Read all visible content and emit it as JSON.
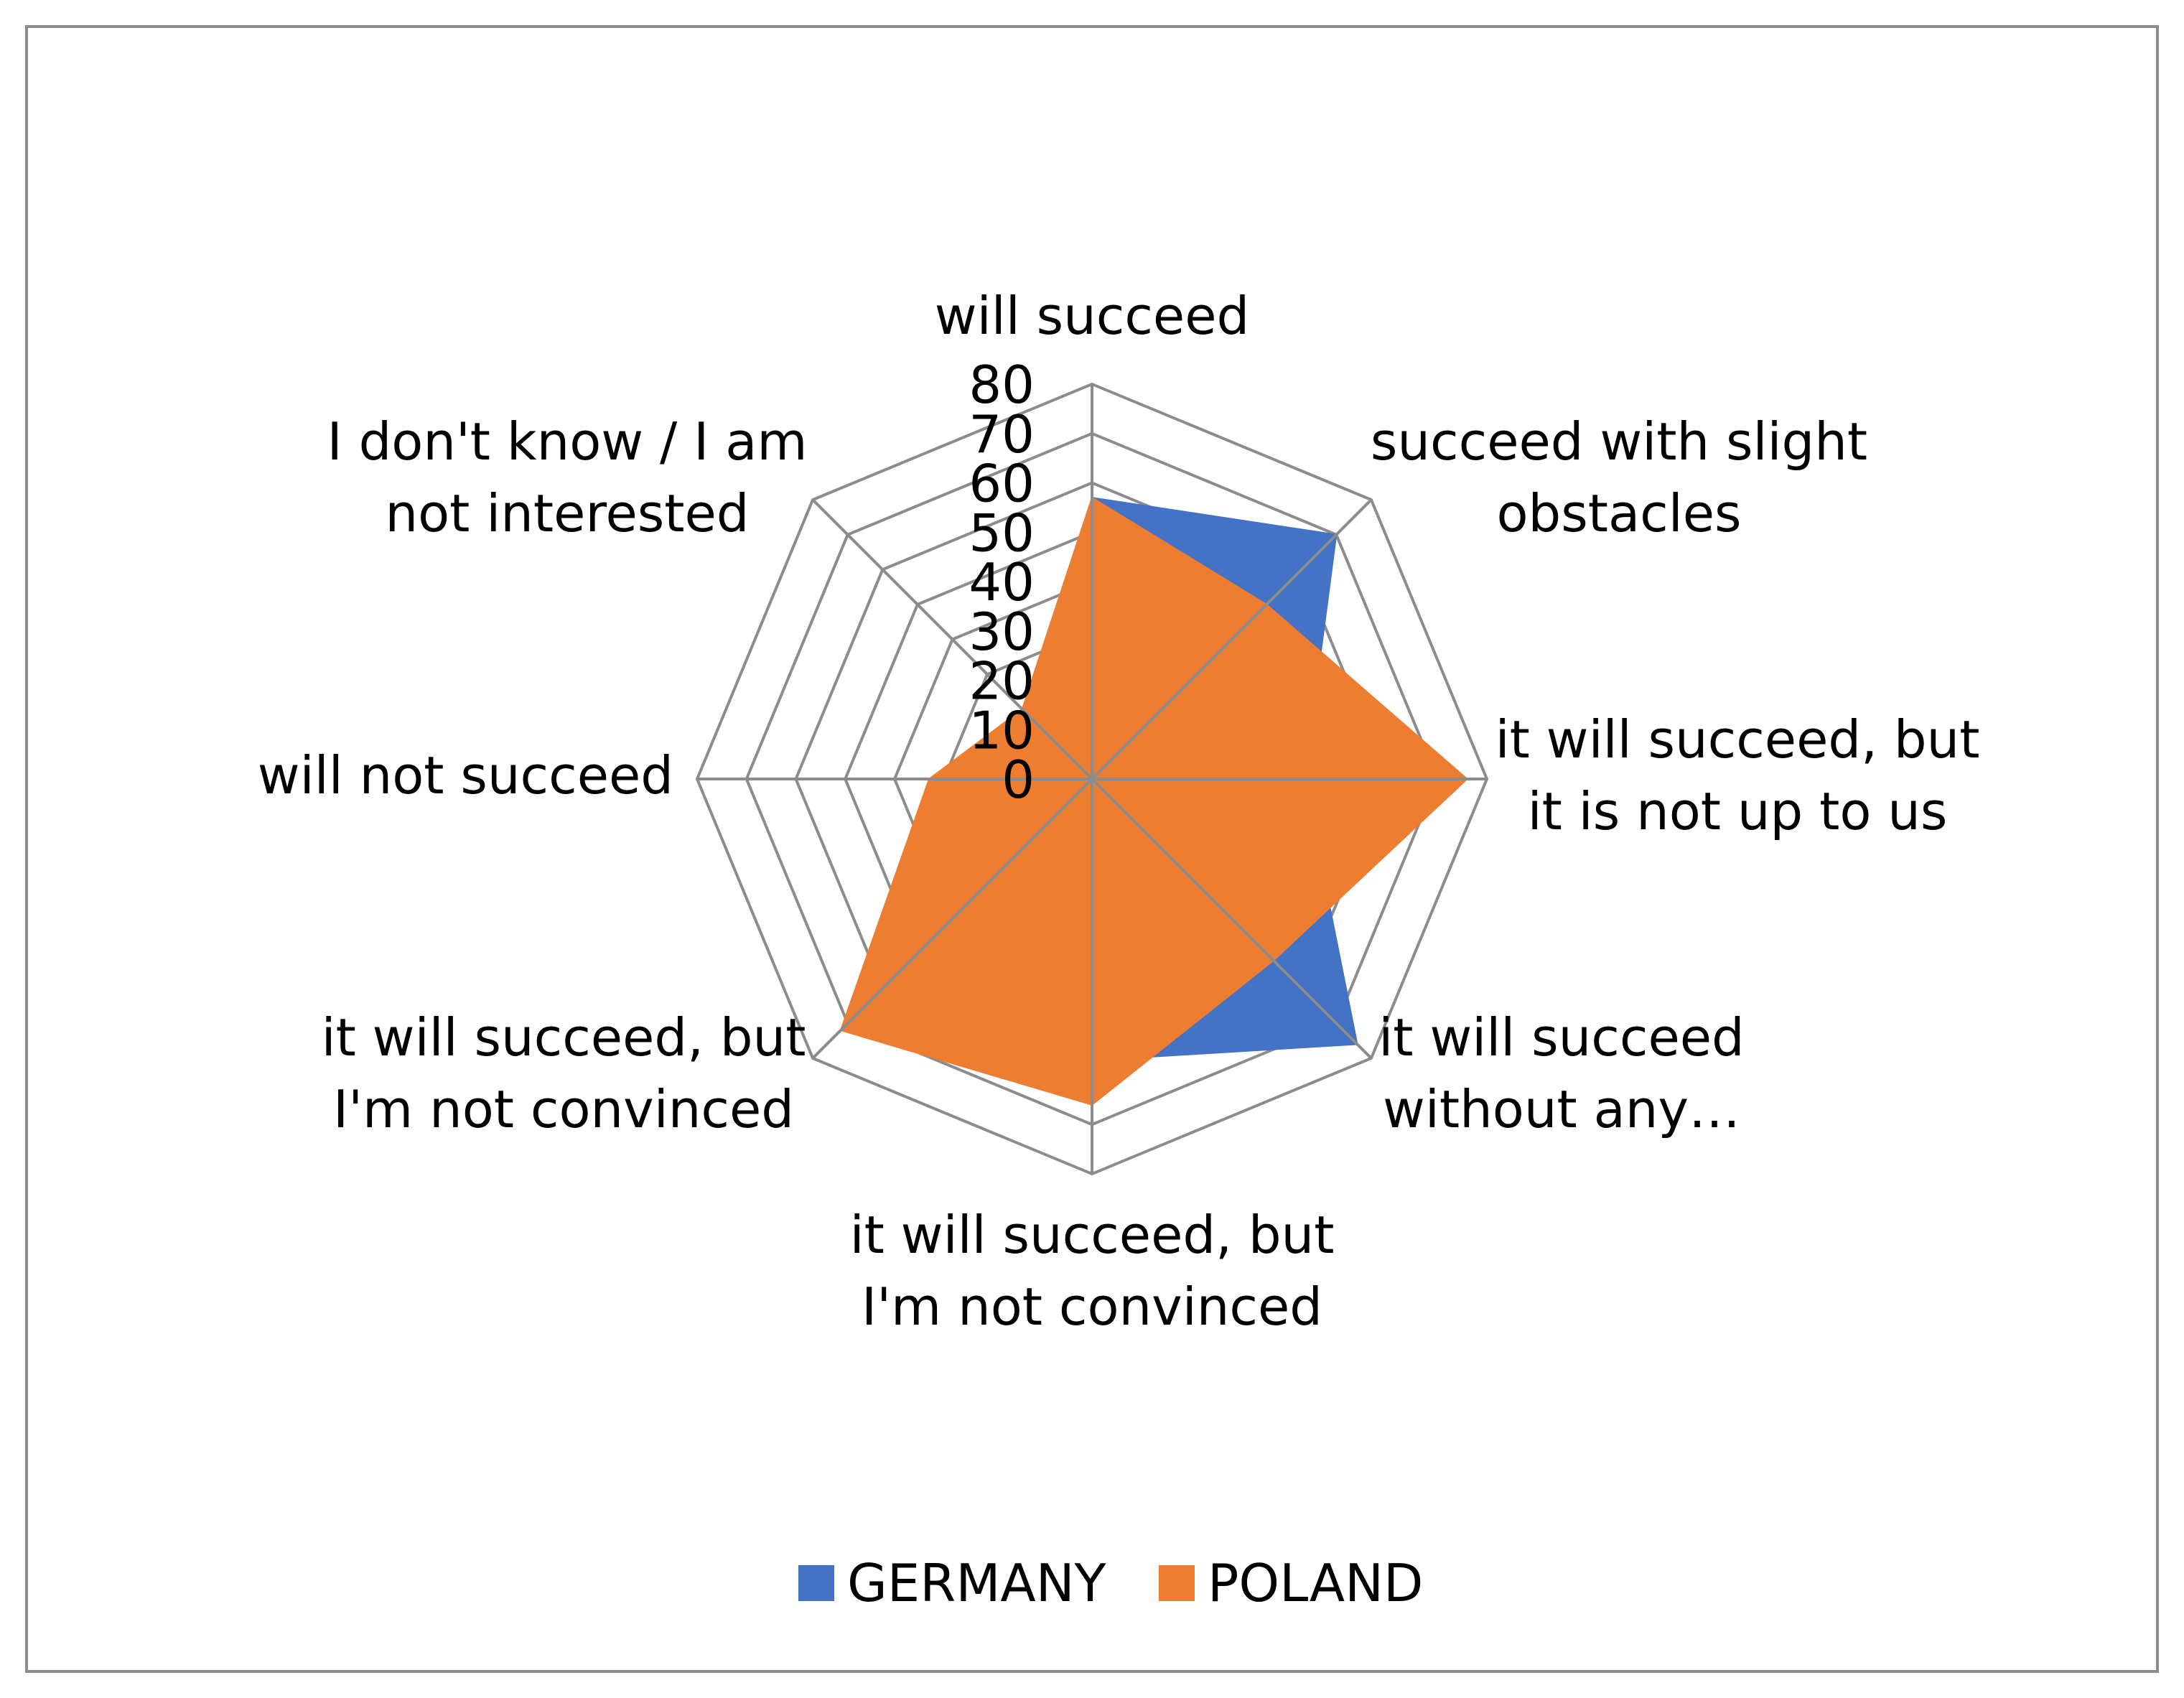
{
  "chart_data": {
    "type": "radar",
    "categories": [
      "will succeed",
      "succeed with slight obstacles",
      "it will succeed, but it is not up to us",
      "it will succeed without any…",
      "it will succeed, but I'm not convinced",
      "it will succeed, but I'm not convinced",
      "will not succeed",
      "I don't know / I am not interested"
    ],
    "category_label_lines": [
      [
        "will succeed"
      ],
      [
        "succeed with slight",
        "obstacles"
      ],
      [
        "it will succeed, but",
        "it is not up to us"
      ],
      [
        "it will succeed",
        "without any…"
      ],
      [
        "it will succeed, but",
        "I'm not convinced"
      ],
      [
        "it will succeed, but",
        "I'm not convinced"
      ],
      [
        "will not succeed"
      ],
      [
        "I don't know / I am",
        "not interested"
      ]
    ],
    "ticks": [
      "0",
      "10",
      "20",
      "30",
      "40",
      "50",
      "60",
      "70",
      "80"
    ],
    "rlim": [
      0,
      80
    ],
    "series": [
      {
        "name": "GERMANY",
        "color": "#4472C4",
        "values": [
          57,
          70,
          43,
          76,
          57,
          66,
          33,
          8
        ]
      },
      {
        "name": "POLAND",
        "color": "#ED7D31",
        "values": [
          57,
          50,
          76,
          52,
          66,
          72,
          33,
          20
        ]
      }
    ],
    "legend_position": "bottom",
    "grid": true
  }
}
